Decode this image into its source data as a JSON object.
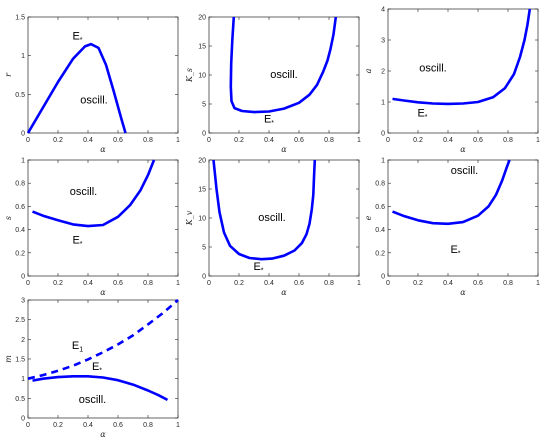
{
  "chart_data": [
    {
      "type": "line",
      "xlabel": "α",
      "ylabel": "r",
      "xlim": [
        0,
        1
      ],
      "ylim": [
        0,
        1.5
      ],
      "xticks": [
        0,
        0.2,
        0.4,
        0.6,
        0.8,
        1
      ],
      "yticks": [
        0,
        0.5,
        1,
        1.5
      ],
      "xtick_labels": [
        "0",
        "0.2",
        "0.4",
        "0.6",
        "0.8",
        "1"
      ],
      "ytick_labels": [
        "0",
        "0.5",
        "1",
        "1.5"
      ],
      "series": [
        {
          "style": "solid",
          "x": [
            0,
            0.1,
            0.2,
            0.3,
            0.38,
            0.42,
            0.47,
            0.52,
            0.57,
            0.62,
            0.65
          ],
          "y": [
            0,
            0.33,
            0.66,
            0.96,
            1.12,
            1.15,
            1.1,
            0.88,
            0.55,
            0.2,
            0
          ]
        }
      ],
      "annotations": [
        {
          "text": "E",
          "sub": "*",
          "x": 0.33,
          "y": 1.21
        },
        {
          "text": "oscill.",
          "x": 0.44,
          "y": 0.38
        }
      ]
    },
    {
      "type": "line",
      "xlabel": "α",
      "ylabel": "K_s",
      "xlim": [
        0,
        1
      ],
      "ylim": [
        0,
        20
      ],
      "xticks": [
        0,
        0.2,
        0.4,
        0.6,
        0.8,
        1
      ],
      "yticks": [
        0,
        5,
        10,
        15,
        20
      ],
      "xtick_labels": [
        "0",
        "0.2",
        "0.4",
        "0.6",
        "0.8",
        "1"
      ],
      "ytick_labels": [
        "0",
        "5",
        "10",
        "15",
        "20"
      ],
      "series": [
        {
          "style": "solid",
          "x": [
            0.165,
            0.155,
            0.148,
            0.145,
            0.15,
            0.17,
            0.22,
            0.3,
            0.4,
            0.5,
            0.6,
            0.67,
            0.72,
            0.76,
            0.79,
            0.81,
            0.83,
            0.845
          ],
          "y": [
            20,
            16,
            12,
            8,
            5.5,
            4.3,
            3.8,
            3.6,
            3.7,
            4.2,
            5.2,
            6.6,
            8.3,
            10.5,
            12.5,
            14.5,
            17,
            20
          ]
        }
      ],
      "annotations": [
        {
          "text": "oscill.",
          "x": 0.5,
          "y": 9.5
        },
        {
          "text": "E",
          "sub": "*",
          "x": 0.4,
          "y": 1.8
        }
      ]
    },
    {
      "type": "line",
      "xlabel": "α",
      "ylabel": "a",
      "xlim": [
        0,
        1
      ],
      "ylim": [
        0,
        4
      ],
      "xticks": [
        0,
        0.2,
        0.4,
        0.6,
        0.8,
        1
      ],
      "yticks": [
        0,
        1,
        2,
        3,
        4
      ],
      "xtick_labels": [
        "0",
        "0.2",
        "0.4",
        "0.6",
        "0.8",
        "1"
      ],
      "ytick_labels": [
        "0",
        "1",
        "2",
        "3",
        "4"
      ],
      "series": [
        {
          "style": "solid",
          "x": [
            0.03,
            0.1,
            0.2,
            0.3,
            0.4,
            0.5,
            0.6,
            0.7,
            0.78,
            0.84,
            0.88,
            0.91,
            0.93,
            0.945
          ],
          "y": [
            1.1,
            1.05,
            0.99,
            0.95,
            0.94,
            0.95,
            1.0,
            1.15,
            1.45,
            1.9,
            2.45,
            3.0,
            3.5,
            4.0
          ]
        }
      ],
      "annotations": [
        {
          "text": "oscill.",
          "x": 0.3,
          "y": 1.98
        },
        {
          "text": "E",
          "sub": "*",
          "x": 0.23,
          "y": 0.53
        }
      ]
    },
    {
      "type": "line",
      "xlabel": "α",
      "ylabel": "s",
      "xlim": [
        0,
        1
      ],
      "ylim": [
        0,
        1
      ],
      "xticks": [
        0,
        0.2,
        0.4,
        0.6,
        0.8,
        1
      ],
      "yticks": [
        0,
        0.2,
        0.4,
        0.6,
        0.8,
        1
      ],
      "xtick_labels": [
        "0",
        "0.2",
        "0.4",
        "0.6",
        "0.8",
        "1"
      ],
      "ytick_labels": [
        "0",
        "0.2",
        "0.4",
        "0.6",
        "0.8",
        "1"
      ],
      "series": [
        {
          "style": "solid",
          "x": [
            0.03,
            0.1,
            0.2,
            0.3,
            0.4,
            0.5,
            0.6,
            0.68,
            0.75,
            0.8,
            0.84
          ],
          "y": [
            0.555,
            0.52,
            0.48,
            0.445,
            0.43,
            0.44,
            0.51,
            0.61,
            0.74,
            0.87,
            1.0
          ]
        }
      ],
      "annotations": [
        {
          "text": "oscill.",
          "x": 0.37,
          "y": 0.7
        },
        {
          "text": "E",
          "sub": "*",
          "x": 0.33,
          "y": 0.28
        }
      ]
    },
    {
      "type": "line",
      "xlabel": "α",
      "ylabel": "K_v",
      "xlim": [
        0,
        1
      ],
      "ylim": [
        0,
        20
      ],
      "xticks": [
        0,
        0.2,
        0.4,
        0.6,
        0.8,
        1
      ],
      "yticks": [
        0,
        5,
        10,
        15,
        20
      ],
      "xtick_labels": [
        "0",
        "0.2",
        "0.4",
        "0.6",
        "0.8",
        "1"
      ],
      "ytick_labels": [
        "0",
        "5",
        "10",
        "15",
        "20"
      ],
      "series": [
        {
          "style": "solid",
          "x": [
            0.03,
            0.05,
            0.07,
            0.1,
            0.14,
            0.2,
            0.27,
            0.35,
            0.42,
            0.5,
            0.57,
            0.62,
            0.65,
            0.67,
            0.685,
            0.695,
            0.7,
            0.705
          ],
          "y": [
            20,
            15,
            11,
            7.5,
            5.2,
            3.8,
            3.1,
            2.9,
            3.0,
            3.5,
            4.4,
            5.7,
            7.2,
            9,
            11.5,
            14,
            17,
            20
          ]
        }
      ],
      "annotations": [
        {
          "text": "oscill.",
          "x": 0.42,
          "y": 9.5
        },
        {
          "text": "E",
          "sub": "*",
          "x": 0.33,
          "y": 1.0
        }
      ]
    },
    {
      "type": "line",
      "xlabel": "α",
      "ylabel": "e",
      "xlim": [
        0,
        1
      ],
      "ylim": [
        0,
        1
      ],
      "xticks": [
        0,
        0.2,
        0.4,
        0.6,
        0.8,
        1
      ],
      "yticks": [
        0,
        0.2,
        0.4,
        0.6,
        0.8,
        1
      ],
      "xtick_labels": [
        "0",
        "0.2",
        "0.4",
        "0.6",
        "0.8",
        "1"
      ],
      "ytick_labels": [
        "0",
        "0.2",
        "0.4",
        "0.6",
        "0.8",
        "1"
      ],
      "series": [
        {
          "style": "solid",
          "x": [
            0.03,
            0.1,
            0.2,
            0.3,
            0.4,
            0.5,
            0.6,
            0.67,
            0.72,
            0.76,
            0.79,
            0.81
          ],
          "y": [
            0.555,
            0.52,
            0.48,
            0.455,
            0.45,
            0.465,
            0.52,
            0.6,
            0.7,
            0.82,
            0.93,
            1.0
          ]
        }
      ],
      "annotations": [
        {
          "text": "oscill.",
          "x": 0.51,
          "y": 0.88
        },
        {
          "text": "E",
          "sub": "*",
          "x": 0.45,
          "y": 0.2
        }
      ]
    },
    {
      "type": "line",
      "xlabel": "α",
      "ylabel": "m",
      "xlim": [
        0,
        1
      ],
      "ylim": [
        0,
        3
      ],
      "xticks": [
        0,
        0.2,
        0.4,
        0.6,
        0.8,
        1
      ],
      "yticks": [
        0,
        0.5,
        1,
        1.5,
        2,
        2.5,
        3
      ],
      "xtick_labels": [
        "0",
        "0.2",
        "0.4",
        "0.6",
        "0.8",
        "1"
      ],
      "ytick_labels": [
        "0",
        "0.5",
        "1",
        "1.5",
        "2",
        "2.5",
        "3"
      ],
      "series": [
        {
          "style": "dashed",
          "x": [
            0,
            0.1,
            0.2,
            0.3,
            0.4,
            0.5,
            0.6,
            0.7,
            0.8,
            0.9,
            1.0
          ],
          "y": [
            1.0,
            1.09,
            1.2,
            1.33,
            1.49,
            1.67,
            1.87,
            2.1,
            2.38,
            2.67,
            3.0
          ]
        },
        {
          "style": "solid",
          "x": [
            0.03,
            0.1,
            0.2,
            0.3,
            0.4,
            0.5,
            0.6,
            0.7,
            0.8,
            0.87,
            0.93
          ],
          "y": [
            0.95,
            1.0,
            1.04,
            1.06,
            1.06,
            1.03,
            0.96,
            0.85,
            0.7,
            0.58,
            0.46
          ]
        }
      ],
      "annotations": [
        {
          "text": "E",
          "sub": "1",
          "x": 0.33,
          "y": 1.75
        },
        {
          "text": "E",
          "sub": "*",
          "x": 0.46,
          "y": 1.22
        },
        {
          "text": "oscill.",
          "x": 0.43,
          "y": 0.38
        }
      ]
    }
  ],
  "styles": {
    "line_color": "#0000ff",
    "axis_color": "#262626",
    "background": "#ffffff"
  }
}
